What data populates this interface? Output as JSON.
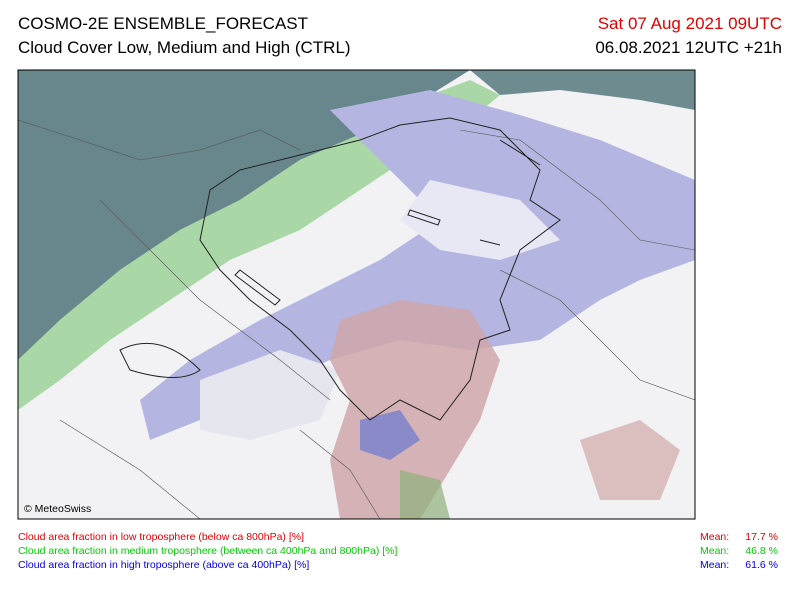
{
  "header": {
    "title": "COSMO-2E ENSEMBLE_FORECAST",
    "subtitle": "Cloud Cover Low, Medium and High (CTRL)",
    "valid_time": "Sat 07 Aug 2021 09UTC",
    "run_time": "06.08.2021 12UTC +21h"
  },
  "map": {
    "copyright": "© MeteoSwiss"
  },
  "legend": [
    {
      "text": "Cloud area fraction in low troposphere (below ca 800hPa) [%]",
      "mean_label": "Mean:",
      "mean": "17.7 %"
    },
    {
      "text": "Cloud area fraction in medium troposphere (between ca 400hPa and 800hPa) [%]",
      "mean_label": "Mean:",
      "mean": "46.8 %"
    },
    {
      "text": "Cloud area fraction in high troposphere (above ca 400hPa) [%]",
      "mean_label": "Mean:",
      "mean": "61.6 %"
    }
  ]
}
